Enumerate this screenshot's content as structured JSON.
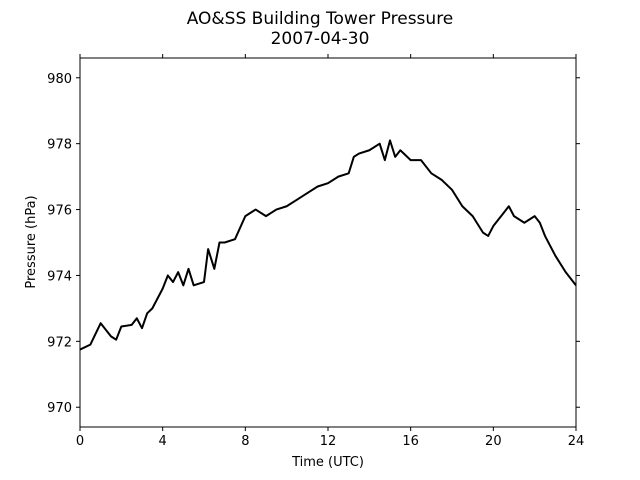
{
  "chart_data": {
    "type": "line",
    "title": "AO&SS Building Tower Pressure",
    "subtitle": "2007-04-30",
    "x_label": "Time (UTC)",
    "y_label": "Pressure (hPa)",
    "x": [
      0,
      0.5,
      1,
      1.5,
      1.75,
      2,
      2.5,
      2.75,
      3,
      3.25,
      3.5,
      4,
      4.25,
      4.5,
      4.75,
      5,
      5.25,
      5.5,
      6,
      6.2,
      6.5,
      6.75,
      7,
      7.5,
      8,
      8.5,
      9,
      9.5,
      10,
      10.5,
      11,
      11.5,
      12,
      12.5,
      13,
      13.25,
      13.5,
      14,
      14.5,
      14.75,
      15,
      15.25,
      15.5,
      16,
      16.5,
      17,
      17.5,
      18,
      18.5,
      19,
      19.5,
      19.75,
      20,
      20.5,
      20.75,
      21,
      21.5,
      22,
      22.25,
      22.5,
      23,
      23.5,
      24
    ],
    "series": [
      {
        "name": "Pressure",
        "color": "#000000",
        "values": [
          971.75,
          971.9,
          972.55,
          972.15,
          972.05,
          972.45,
          972.5,
          972.7,
          972.4,
          972.85,
          973.0,
          973.6,
          974.0,
          973.8,
          974.1,
          973.7,
          974.2,
          973.7,
          973.8,
          974.8,
          974.2,
          975.0,
          975.0,
          975.1,
          975.8,
          976.0,
          975.8,
          976.0,
          976.1,
          976.3,
          976.5,
          976.7,
          976.8,
          977.0,
          977.1,
          977.6,
          977.7,
          977.8,
          978.0,
          977.5,
          978.1,
          977.6,
          977.8,
          977.5,
          977.5,
          977.1,
          976.9,
          976.6,
          976.1,
          975.8,
          975.3,
          975.2,
          975.5,
          975.9,
          976.1,
          975.8,
          975.6,
          975.8,
          975.6,
          975.2,
          974.6,
          974.1,
          973.7
        ]
      }
    ],
    "xlim": [
      0,
      24
    ],
    "xticks": [
      0,
      4,
      8,
      12,
      16,
      20,
      24
    ],
    "ylim": [
      969.4,
      980.6
    ],
    "yticks": [
      970,
      972,
      974,
      976,
      978,
      980
    ],
    "grid": false
  }
}
